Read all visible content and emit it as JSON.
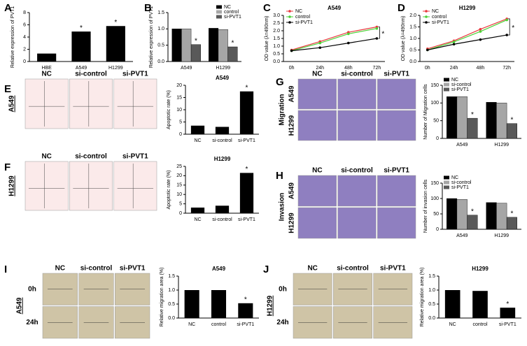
{
  "panel_labels": [
    "A",
    "B",
    "C",
    "D",
    "E",
    "F",
    "G",
    "H",
    "I",
    "J"
  ],
  "chart_data": [
    {
      "type": "bar",
      "ylabel": "Relative expression of PVT1",
      "categories": [
        "HBE",
        "A549",
        "H1299"
      ],
      "values": [
        1.3,
        4.9,
        5.8
      ],
      "stars": [
        null,
        "*",
        "*"
      ],
      "color": "#000000",
      "ylim": [
        0,
        8
      ],
      "yticks": [
        0,
        2,
        4,
        6,
        8
      ]
    },
    {
      "type": "grouped_bar",
      "ylabel": "Relative expression of PVT1",
      "categories": [
        "A549",
        "H1299"
      ],
      "legend": "upper right",
      "series": [
        {
          "name": "NC",
          "color": "#000000",
          "values": [
            1.0,
            1.02
          ]
        },
        {
          "name": "control",
          "color": "#a6a6a6",
          "values": [
            1.0,
            0.98
          ]
        },
        {
          "name": "si-PVT1",
          "color": "#595959",
          "values": [
            0.52,
            0.45
          ],
          "stars": [
            "*",
            "*"
          ]
        }
      ],
      "ylim": [
        0,
        1.5
      ],
      "yticks": [
        {
          "value": 0,
          "label": "0.0"
        },
        0.5,
        {
          "value": 1,
          "label": "1.0"
        },
        1.5
      ]
    },
    {
      "type": "line",
      "title": "A549",
      "ylabel": "OD value (λ=490nm)",
      "categories": [
        "0h",
        "24h",
        "48h",
        "72h"
      ],
      "legend": "upper left",
      "annotation": "*",
      "series": [
        {
          "name": "NC",
          "color": "#e8383d",
          "values": [
            0.75,
            1.3,
            1.9,
            2.25
          ]
        },
        {
          "name": "control",
          "color": "#4cd137",
          "values": [
            0.7,
            1.2,
            1.8,
            2.15
          ]
        },
        {
          "name": "si-PVT1",
          "color": "#000000",
          "values": [
            0.7,
            0.9,
            1.2,
            1.5
          ]
        }
      ],
      "ylim": [
        0,
        3
      ],
      "yticks": [
        {
          "value": 0,
          "label": "0.0"
        },
        0.5,
        {
          "value": 1,
          "label": "1.0"
        },
        1.5,
        {
          "value": 2,
          "label": "2.0"
        },
        2.5,
        {
          "value": 3,
          "label": "3.0"
        }
      ]
    },
    {
      "type": "line",
      "title": "H1299",
      "ylabel": "OD value (λ=490nm)",
      "categories": [
        "0h",
        "24h",
        "48h",
        "72h"
      ],
      "legend": "upper left",
      "annotation": "*",
      "series": [
        {
          "name": "NC",
          "color": "#e8383d",
          "values": [
            0.55,
            0.9,
            1.4,
            1.85
          ]
        },
        {
          "name": "control",
          "color": "#4cd137",
          "values": [
            0.5,
            0.85,
            1.3,
            1.8
          ]
        },
        {
          "name": "si-PVT1",
          "color": "#000000",
          "values": [
            0.5,
            0.75,
            0.95,
            1.15
          ]
        }
      ],
      "ylim": [
        0,
        2
      ],
      "yticks": [
        {
          "value": 0,
          "label": "0.0"
        },
        0.5,
        {
          "value": 1,
          "label": "1.0"
        },
        1.5,
        {
          "value": 2,
          "label": "2.0"
        }
      ]
    },
    {
      "type": "bar",
      "title": "A549",
      "ylabel": "Apoptotic rate (%)",
      "categories": [
        "NC",
        "si-control",
        "si-PVT1"
      ],
      "values": [
        3.5,
        3.0,
        17.5
      ],
      "stars": [
        null,
        null,
        "*"
      ],
      "color": "#000000",
      "ylim": [
        0,
        20
      ],
      "yticks": [
        0,
        5,
        10,
        15,
        20
      ]
    },
    {
      "type": "bar",
      "title": "H1299",
      "ylabel": "Apoptotic rate (%)",
      "categories": [
        "NC",
        "si-control",
        "si-PVT1"
      ],
      "values": [
        3.0,
        4.0,
        21.5
      ],
      "stars": [
        null,
        null,
        "*"
      ],
      "color": "#000000",
      "ylim": [
        0,
        25
      ],
      "yticks": [
        0,
        5,
        10,
        15,
        20,
        25
      ]
    },
    {
      "type": "grouped_bar",
      "ylabel": "Number of Migration cells",
      "categories": [
        "A549",
        "H1299"
      ],
      "legend": "upper left",
      "series": [
        {
          "name": "NC",
          "color": "#000000",
          "values": [
            118,
            102
          ]
        },
        {
          "name": "si-control",
          "color": "#a6a6a6",
          "values": [
            118,
            100
          ]
        },
        {
          "name": "si-PVT1",
          "color": "#595959",
          "values": [
            57,
            42
          ],
          "stars": [
            "*",
            "*"
          ]
        }
      ],
      "ylim": [
        0,
        150
      ],
      "yticks": [
        0,
        50,
        100,
        150
      ]
    },
    {
      "type": "grouped_bar",
      "ylabel": "Number of invasion cells",
      "categories": [
        "A549",
        "H1299"
      ],
      "legend": "upper left",
      "series": [
        {
          "name": "NC",
          "color": "#000000",
          "values": [
            100,
            87
          ]
        },
        {
          "name": "si-control",
          "color": "#a6a6a6",
          "values": [
            97,
            85
          ]
        },
        {
          "name": "si-PVT1",
          "color": "#595959",
          "values": [
            46,
            39
          ],
          "stars": [
            "*",
            "*"
          ]
        }
      ],
      "ylim": [
        0,
        150
      ],
      "yticks": [
        0,
        50,
        100,
        150
      ]
    },
    {
      "type": "bar",
      "title": "A549",
      "ylabel": "Relative migration area (%)",
      "categories": [
        "NC",
        "control",
        "si-PVT1"
      ],
      "values": [
        1.0,
        1.0,
        0.53
      ],
      "stars": [
        null,
        null,
        "*"
      ],
      "color": "#000000",
      "ylim": [
        0,
        1.5
      ],
      "yticks": [
        {
          "value": 0,
          "label": "0.0"
        },
        0.5,
        {
          "value": 1,
          "label": "1.0"
        },
        1.5
      ]
    },
    {
      "type": "bar",
      "title": "H1299",
      "ylabel": "Relative migration area (%)",
      "categories": [
        "NC",
        "control",
        "si-PVT1"
      ],
      "values": [
        1.0,
        0.97,
        0.37
      ],
      "stars": [
        null,
        null,
        "*"
      ],
      "color": "#000000",
      "ylim": [
        0,
        1.5
      ],
      "yticks": [
        {
          "value": 0,
          "label": "0.0"
        },
        0.5,
        {
          "value": 1,
          "label": "1.0"
        },
        1.5
      ]
    }
  ],
  "image_panels": [
    {
      "columns": [
        "NC",
        "si-control",
        "si-PVT1"
      ],
      "rows": [
        "A549"
      ]
    },
    {
      "columns": [
        "NC",
        "si-control",
        "si-PVT1"
      ],
      "rows": [
        "H1299"
      ]
    },
    {
      "group": "Migration",
      "columns": [
        "NC",
        "si-control",
        "si-PVT1"
      ],
      "rows": [
        "A549",
        "H1299"
      ]
    },
    {
      "group": "Invasion",
      "columns": [
        "NC",
        "si-control",
        "si-PVT1"
      ],
      "rows": [
        "A549",
        "H1299"
      ]
    },
    {
      "cell_line": "A549",
      "columns": [
        "NC",
        "si-control",
        "si-PVT1"
      ],
      "rows": [
        "0h",
        "24h"
      ]
    },
    {
      "cell_line": "H1299",
      "columns": [
        "NC",
        "si-control",
        "si-PVT1"
      ],
      "rows": [
        "0h",
        "24h"
      ]
    }
  ]
}
